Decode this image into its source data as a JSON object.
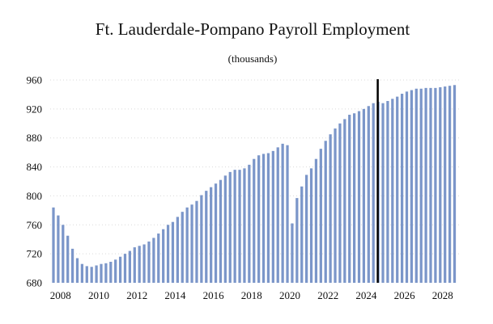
{
  "chart_data": {
    "type": "bar",
    "title": "Ft. Lauderdale-Pompano Payroll Employment",
    "subtitle": "(thousands)",
    "xlabel": "",
    "ylabel": "",
    "ylim": [
      680,
      960
    ],
    "y_ticks": [
      680,
      720,
      760,
      800,
      840,
      880,
      920,
      960
    ],
    "x_ticks": [
      "2008",
      "2010",
      "2012",
      "2014",
      "2016",
      "2018",
      "2020",
      "2022",
      "2024",
      "2026",
      "2028"
    ],
    "x_start_year": 2008,
    "periods_per_year": 4,
    "grid": true,
    "legend": "none",
    "bar_color": "#7b96c9",
    "marker_color": "#000000",
    "vertical_marker_year": 2025,
    "values": [
      784,
      773,
      760,
      745,
      727,
      714,
      706,
      703,
      702,
      704,
      706,
      707,
      709,
      712,
      716,
      720,
      724,
      729,
      731,
      733,
      737,
      742,
      748,
      754,
      760,
      764,
      771,
      778,
      784,
      788,
      793,
      801,
      807,
      812,
      817,
      822,
      828,
      833,
      836,
      836,
      838,
      843,
      851,
      856,
      858,
      859,
      862,
      867,
      872,
      870,
      762,
      797,
      813,
      829,
      838,
      851,
      865,
      876,
      885,
      893,
      900,
      906,
      912,
      914,
      917,
      920,
      924,
      928,
      930,
      928,
      931,
      934,
      937,
      941,
      944,
      946,
      948,
      948,
      949,
      949,
      949,
      950,
      951,
      952,
      953
    ]
  }
}
